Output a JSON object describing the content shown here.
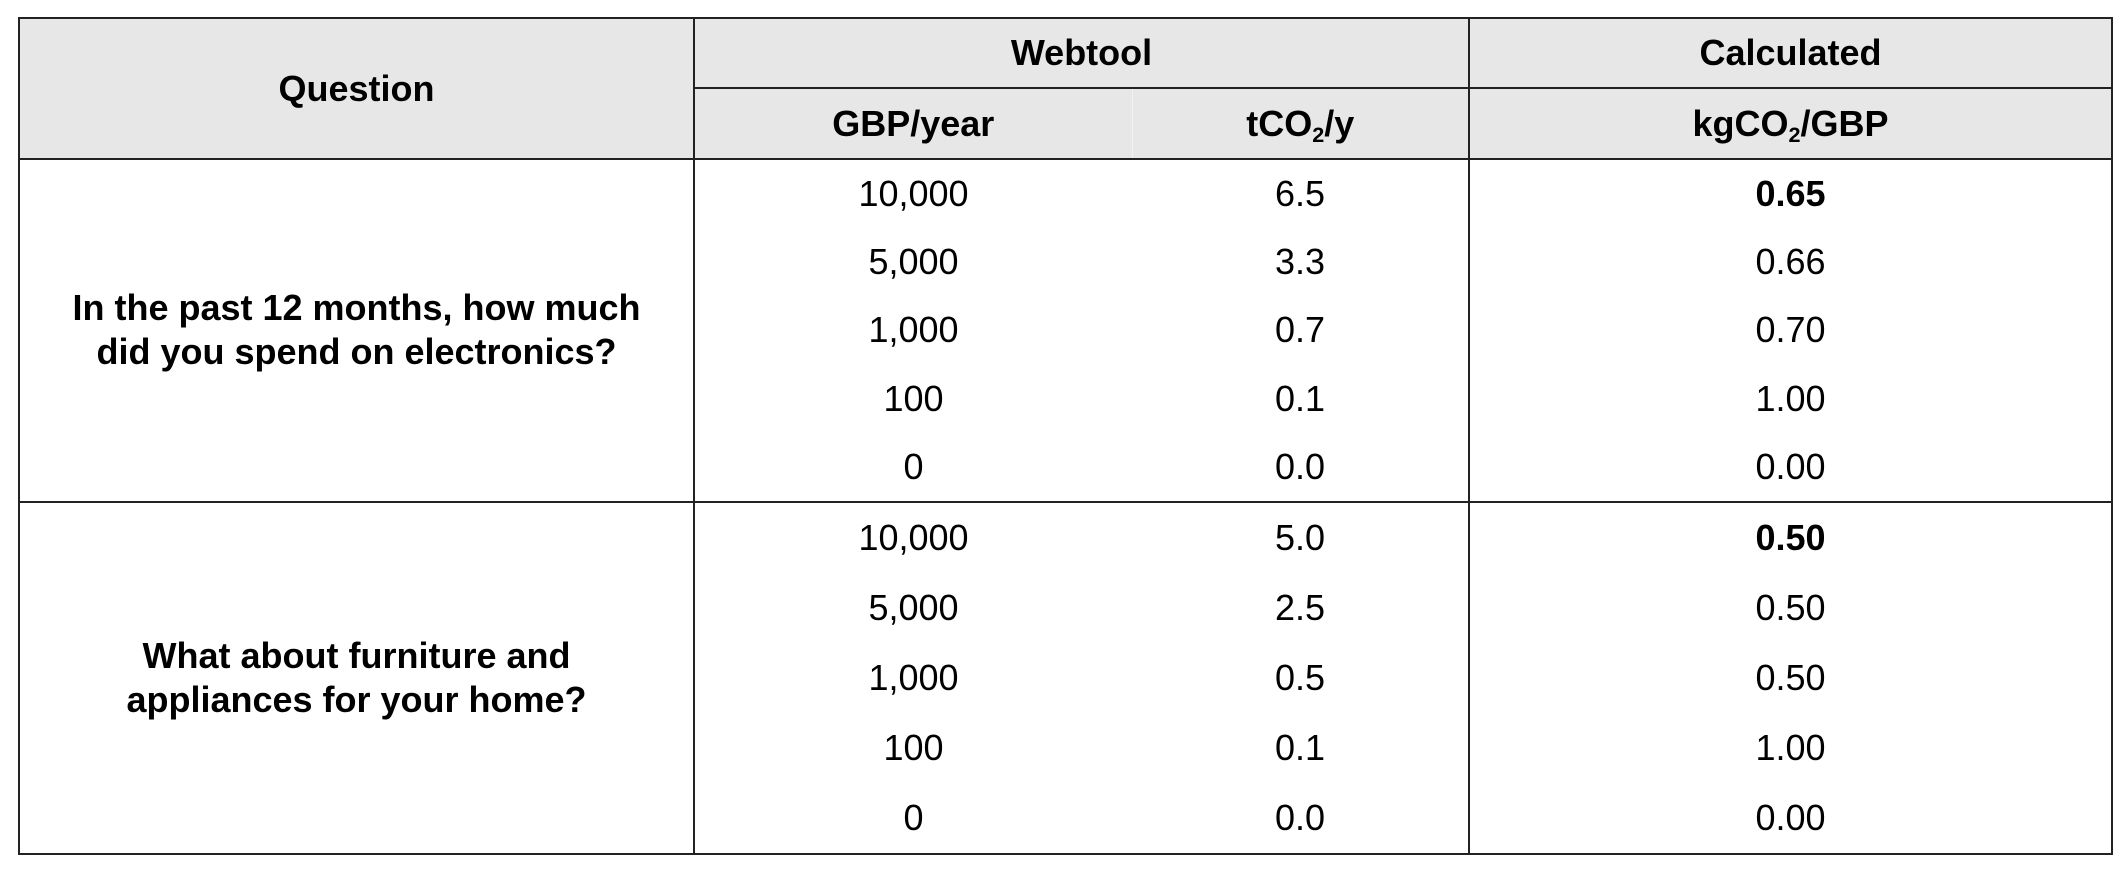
{
  "header": {
    "question": "Question",
    "webtool": "Webtool",
    "calculated": "Calculated",
    "col_gbp": "GBP/year",
    "col_tco2": {
      "prefix": "tCO",
      "sub": "2",
      "suffix": "/y"
    },
    "col_kg": {
      "prefix": "kgCO",
      "sub": "2",
      "suffix": "/GBP"
    }
  },
  "groups": [
    {
      "question": "In the past 12 months, how much did you spend on electronics?",
      "rows": [
        {
          "gbp": "10,000",
          "tco2": "6.5",
          "kg": "0.65",
          "bold": true
        },
        {
          "gbp": "5,000",
          "tco2": "3.3",
          "kg": "0.66",
          "bold": false
        },
        {
          "gbp": "1,000",
          "tco2": "0.7",
          "kg": "0.70",
          "bold": false
        },
        {
          "gbp": "100",
          "tco2": "0.1",
          "kg": "1.00",
          "bold": false
        },
        {
          "gbp": "0",
          "tco2": "0.0",
          "kg": "0.00",
          "bold": false
        }
      ]
    },
    {
      "question": "What about furniture and appliances for your home?",
      "rows": [
        {
          "gbp": "10,000",
          "tco2": "5.0",
          "kg": "0.50",
          "bold": true
        },
        {
          "gbp": "5,000",
          "tco2": "2.5",
          "kg": "0.50",
          "bold": false
        },
        {
          "gbp": "1,000",
          "tco2": "0.5",
          "kg": "0.50",
          "bold": false
        },
        {
          "gbp": "100",
          "tco2": "0.1",
          "kg": "1.00",
          "bold": false
        },
        {
          "gbp": "0",
          "tco2": "0.0",
          "kg": "0.00",
          "bold": false
        }
      ]
    }
  ]
}
